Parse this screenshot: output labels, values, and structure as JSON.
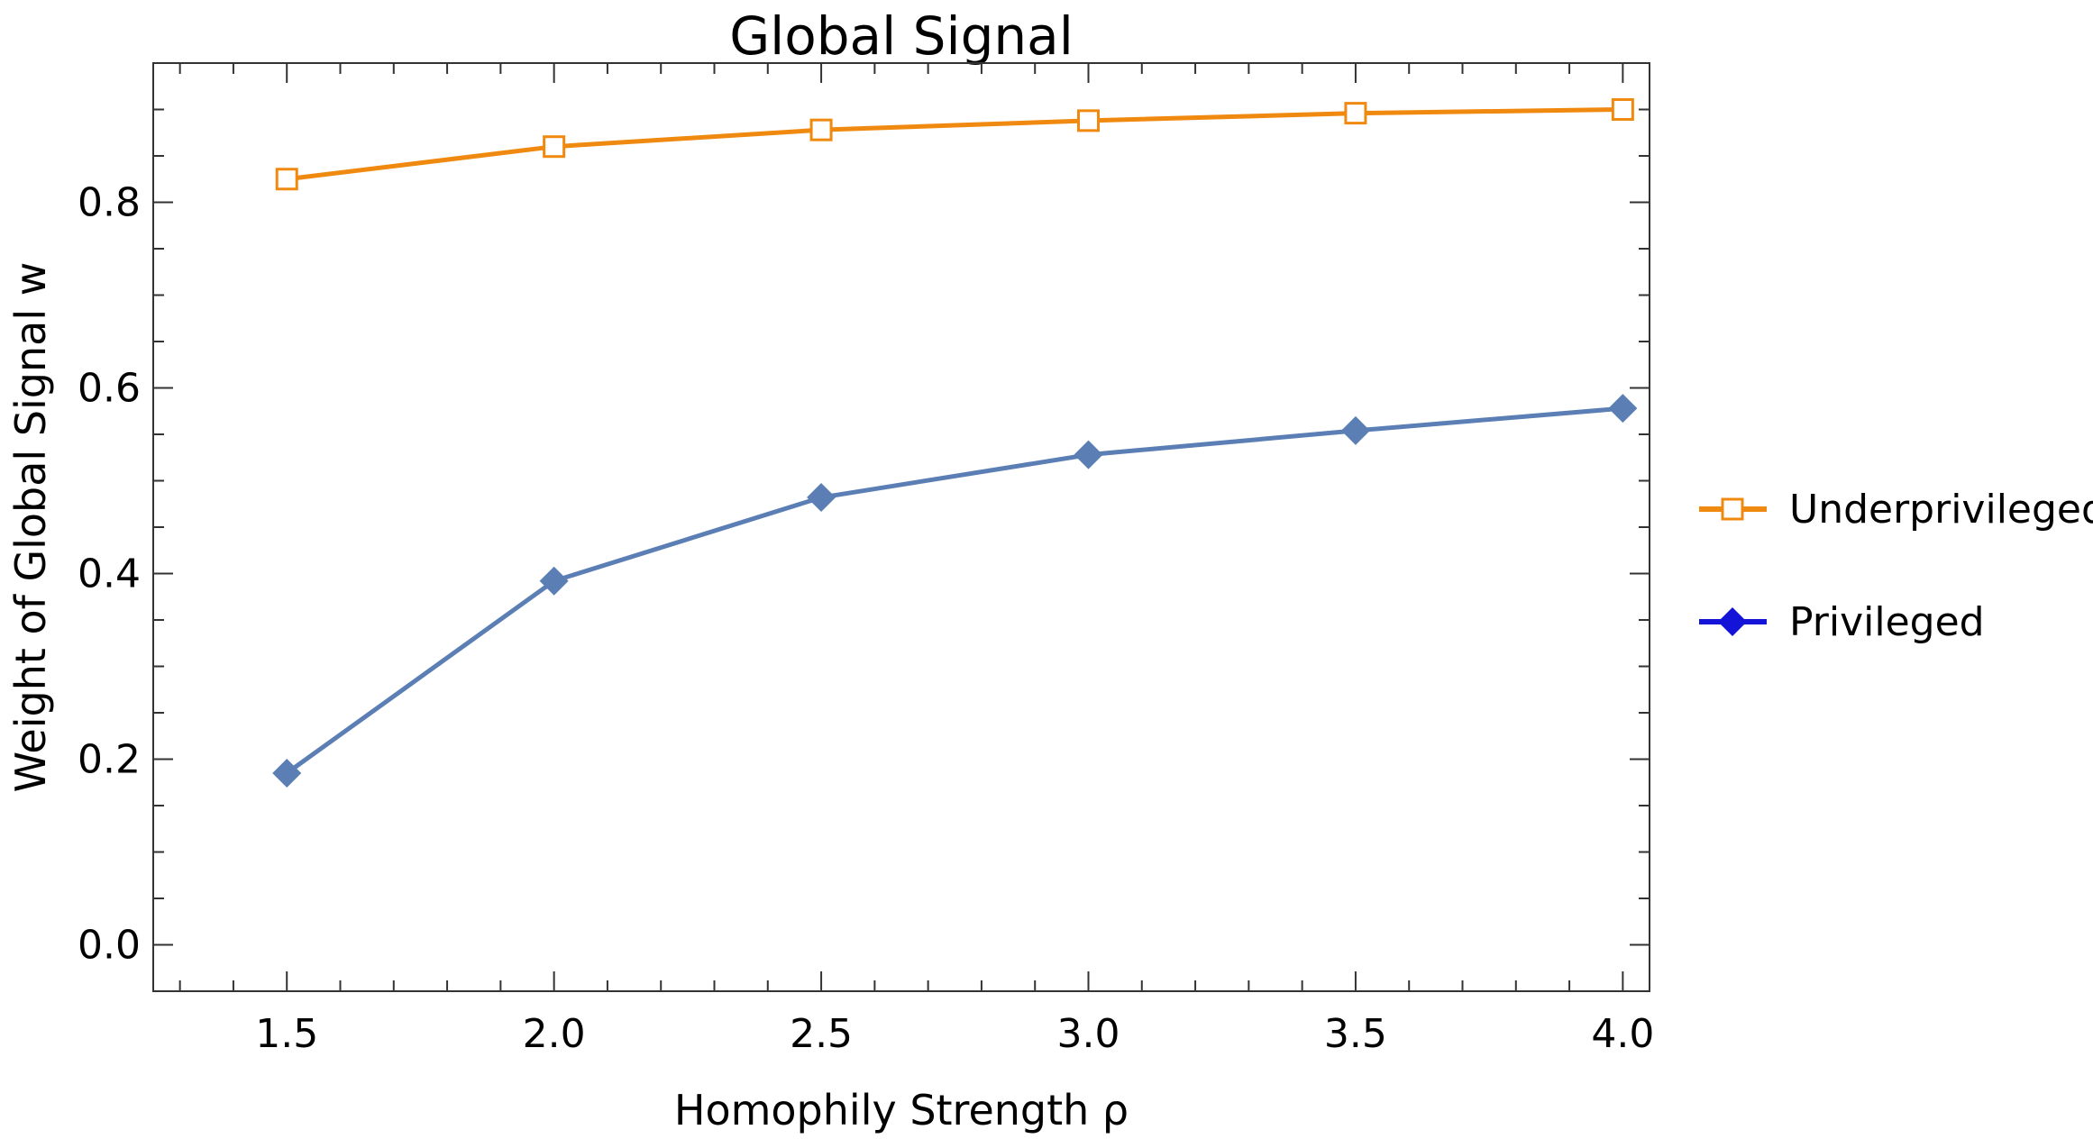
{
  "chart_data": {
    "type": "line",
    "title": "Global Signal",
    "xlabel": "Homophily Strength ρ",
    "ylabel": "Weight of Global Signal w",
    "x": [
      1.5,
      2.0,
      2.5,
      3.0,
      3.5,
      4.0
    ],
    "x_tick_labels": [
      "1.5",
      "2.0",
      "2.5",
      "3.0",
      "3.5",
      "4.0"
    ],
    "y_tick_labels": [
      "0.0",
      "0.2",
      "0.4",
      "0.6",
      "0.8"
    ],
    "y_ticks": [
      0.0,
      0.2,
      0.4,
      0.6,
      0.8
    ],
    "xlim": [
      1.25,
      4.05
    ],
    "ylim": [
      -0.05,
      0.95
    ],
    "grid": false,
    "legend_position": "right",
    "series": [
      {
        "name": "Underprivileged",
        "color": "#f0890f",
        "marker": "open-square",
        "values": [
          0.825,
          0.86,
          0.878,
          0.888,
          0.896,
          0.9
        ]
      },
      {
        "name": "Privileged",
        "color": "#5b7fb5",
        "legend_color": "#1414d8",
        "marker": "filled-diamond",
        "values": [
          0.185,
          0.392,
          0.482,
          0.528,
          0.554,
          0.578
        ]
      }
    ]
  }
}
